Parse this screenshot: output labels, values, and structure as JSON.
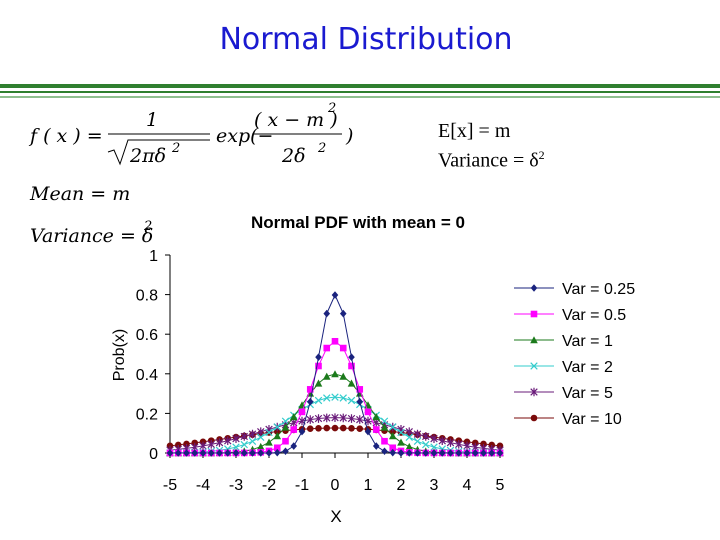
{
  "slide": {
    "title": "Normal Distribution",
    "expectation": "E[x] = m",
    "variance_label": "Variance = δ",
    "variance_exp": "2"
  },
  "formula": {
    "f_lhs": "f ( x ) =",
    "numerator": "1",
    "sqrt_inner": "2πδ",
    "sq": "2",
    "exp": "exp(−",
    "exp_num": "( x − m )",
    "exp_den": "2δ",
    "close": ")",
    "mean": "Mean = m",
    "variance": "Variance = δ"
  },
  "colors": {
    "title": "#1a1ad0",
    "rule": "#2f7f2f",
    "var025": "#1a237e",
    "var05": "#ff00ff",
    "var1": "#1b7a1b",
    "var2": "#33cccc",
    "var5": "#6a1b7a",
    "var10": "#7a0a0a"
  },
  "chart_data": {
    "type": "line",
    "title": "Normal PDF with mean = 0",
    "xlabel": "X",
    "ylabel": "Prob(x)",
    "xlim": [
      -5,
      5
    ],
    "ylim": [
      0,
      1
    ],
    "x_ticks": [
      -5,
      -4,
      -3,
      -2,
      -1,
      0,
      1,
      2,
      3,
      4,
      5
    ],
    "y_ticks": [
      0,
      0.2,
      0.4,
      0.6,
      0.8,
      1
    ],
    "y_tick_labels": [
      "0",
      "0.2",
      "0.4",
      "0.6",
      "0.8",
      "1"
    ],
    "x_step": 0.25,
    "mean": 0,
    "series": [
      {
        "name": "Var = 0.25",
        "variance": 0.25,
        "marker": "diamond",
        "color": "#1a237e"
      },
      {
        "name": "Var = 0.5",
        "variance": 0.5,
        "marker": "square",
        "color": "#ff00ff"
      },
      {
        "name": "Var = 1",
        "variance": 1,
        "marker": "triangle",
        "color": "#1b7a1b"
      },
      {
        "name": "Var = 2",
        "variance": 2,
        "marker": "x",
        "color": "#33cccc"
      },
      {
        "name": "Var = 5",
        "variance": 5,
        "marker": "star",
        "color": "#6a1b7a"
      },
      {
        "name": "Var = 10",
        "variance": 10,
        "marker": "circle",
        "color": "#7a0a0a"
      }
    ],
    "legend_position": "right"
  }
}
